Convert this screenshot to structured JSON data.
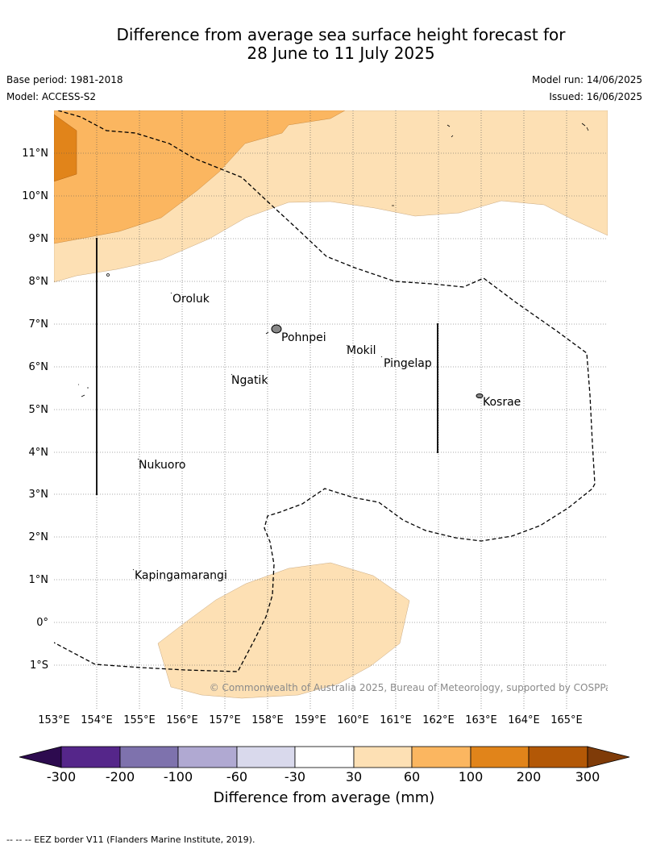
{
  "title_line1": "Difference from average sea surface height forecast for",
  "title_line2": "28 June to 11 July 2025",
  "base_period": "Base period: 1981-2018",
  "model": "Model: ACCESS-S2",
  "model_run": "Model run: 14/06/2025",
  "issued": "Issued: 16/06/2025",
  "lon_ticks": [
    "153°E",
    "154°E",
    "155°E",
    "156°E",
    "157°E",
    "158°E",
    "159°E",
    "160°E",
    "161°E",
    "162°E",
    "163°E",
    "164°E",
    "165°E"
  ],
  "lat_ticks": [
    "11°N",
    "10°N",
    "9°N",
    "8°N",
    "7°N",
    "6°N",
    "5°N",
    "4°N",
    "3°N",
    "2°N",
    "1°N",
    "0°",
    "1°S"
  ],
  "places": [
    "Oroluk",
    "Pohnpei",
    "Mokil",
    "Pingelap",
    "Ngatik",
    "Kosrae",
    "Nukuoro",
    "Kapingamarangi"
  ],
  "copyright": "© Commonwealth of Australia 2025, Bureau of Meteorology, supported by COSPPac",
  "colorbar": {
    "ticks": [
      "-300",
      "-200",
      "-100",
      "-60",
      "-30",
      "30",
      "60",
      "100",
      "200",
      "300"
    ],
    "label": "Difference from average (mm)",
    "colors": [
      "#2d0b4f",
      "#55268a",
      "#7e72ad",
      "#b0a9d2",
      "#d9d9ec",
      "#ffffff",
      "#fde0b4",
      "#fbb660",
      "#e1841a",
      "#b35806",
      "#7f3b08"
    ]
  },
  "footer": "-- -- -- EEZ border V11 (Flanders Marine Institute, 2019)."
}
